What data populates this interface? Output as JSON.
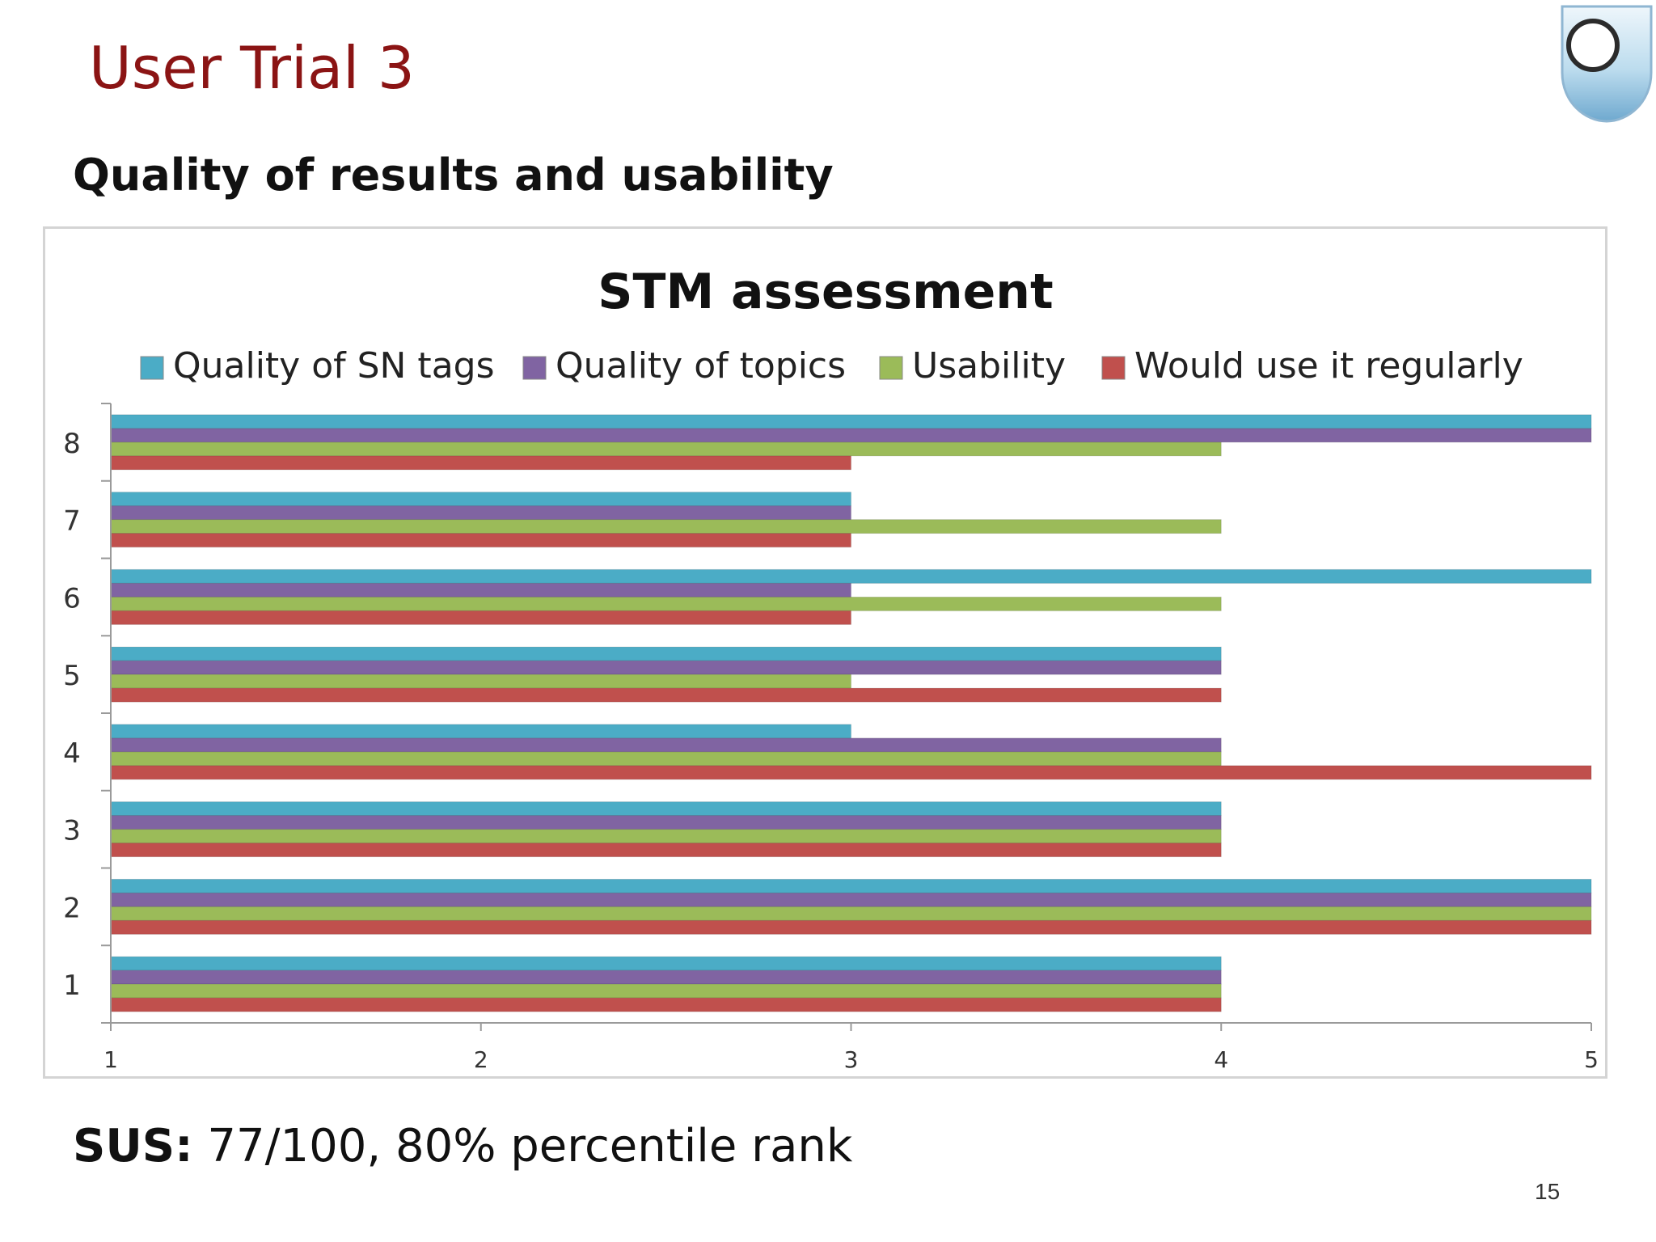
{
  "slide": {
    "title": "User Trial 3",
    "subtitle": "Quality of results and usability",
    "sus_label": "SUS:",
    "sus_value": " 77/100, 80% percentile rank",
    "page_number": "15"
  },
  "chart_data": {
    "type": "bar",
    "orientation": "horizontal",
    "title": "STM assessment",
    "xlabel": "",
    "ylabel": "",
    "xlim": [
      1,
      5
    ],
    "x_ticks": [
      1,
      2,
      3,
      4,
      5
    ],
    "categories": [
      "1",
      "2",
      "3",
      "4",
      "5",
      "6",
      "7",
      "8"
    ],
    "legend_position": "top",
    "grid": false,
    "series": [
      {
        "name": "Quality of SN tags",
        "color": "#4bacc6",
        "values": [
          4,
          5,
          4,
          3,
          4,
          5,
          3,
          5
        ]
      },
      {
        "name": "Quality of topics",
        "color": "#8064a2",
        "values": [
          4,
          5,
          4,
          4,
          4,
          3,
          3,
          5
        ]
      },
      {
        "name": "Usability",
        "color": "#9bbb59",
        "values": [
          4,
          5,
          4,
          4,
          3,
          4,
          4,
          4
        ]
      },
      {
        "name": "Would use it regularly",
        "color": "#c0504d",
        "values": [
          4,
          5,
          4,
          5,
          4,
          3,
          3,
          3
        ]
      }
    ]
  }
}
